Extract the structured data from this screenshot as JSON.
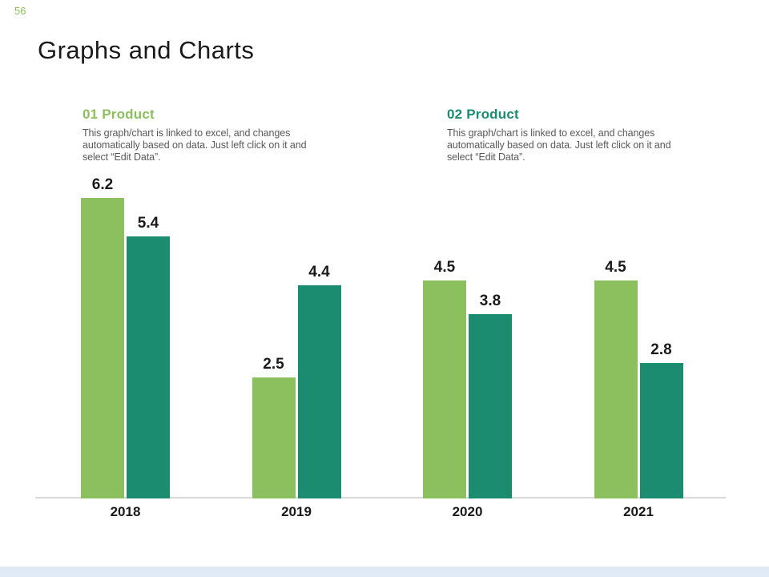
{
  "page_number": "56",
  "title": "Graphs and Charts",
  "colors": {
    "series1_green": "#8CC05E",
    "series2_teal": "#1B8C70",
    "text_dark": "#1A1A1A",
    "text_body": "#595959",
    "axis_line": "#D9D9D9",
    "footer_strip": "#DFEAF6"
  },
  "legends": [
    {
      "heading": "01 Product",
      "body_lines": [
        "This graph/chart is linked to excel,  and changes",
        "automatically based on data. Just left click on it and",
        "select “Edit Data”."
      ]
    },
    {
      "heading": "02 Product",
      "body_lines": [
        "This graph/chart is linked to excel,  and changes",
        "automatically based on data. Just left click on it and",
        "select “Edit Data”."
      ]
    }
  ],
  "chart_data": {
    "type": "bar",
    "categories": [
      "2018",
      "2019",
      "2020",
      "2021"
    ],
    "series": [
      {
        "name": "01 Product",
        "color": "#8CC05E",
        "values": [
          6.2,
          2.5,
          4.5,
          4.5
        ]
      },
      {
        "name": "02 Product",
        "color": "#1B8C70",
        "values": [
          5.4,
          4.4,
          3.8,
          2.8
        ]
      }
    ],
    "value_labels": true,
    "ylim": [
      0,
      6.5
    ],
    "grid": false,
    "axes": "x axis only, no y axis ticks",
    "legend_position": "custom text blocks above chart"
  }
}
